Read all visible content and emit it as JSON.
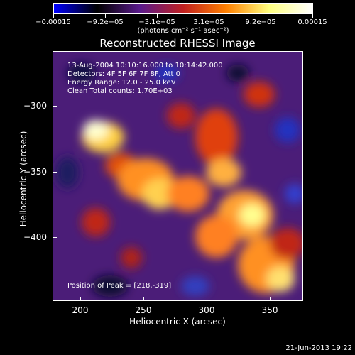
{
  "colorbar": {
    "labels": [
      "−0.00015",
      "−9.2e−05",
      "−3.1e−05",
      "3.1e−05",
      "9.2e−05",
      "0.00015"
    ],
    "units": "(photons cm⁻² s⁻¹ asec⁻²)",
    "colors": [
      "#0000ff",
      "#000000",
      "#5a1a8c",
      "#c02020",
      "#ff8000",
      "#ffff80",
      "#ffffff"
    ]
  },
  "title": "Reconstructed RHESSI Image",
  "info": {
    "time_range": "13-Aug-2004 10:10:16.000 to 10:14:42.000",
    "detectors": "Detectors: 4F 5F 6F 7F 8F, Att 0",
    "energy": "Energy Range: 12.0 - 25.0 keV",
    "clean": "Clean     Total counts: 1.70E+03"
  },
  "peak": "Position of Peak = [218,-319]",
  "axes": {
    "xlabel": "Heliocentric X (arcsec)",
    "ylabel": "Heliocentric Y (arcsec)",
    "xticks": [
      "200",
      "250",
      "300",
      "350"
    ],
    "yticks": [
      "−300",
      "−350",
      "−400"
    ]
  },
  "timestamp": "21-Jun-2013 19:22"
}
